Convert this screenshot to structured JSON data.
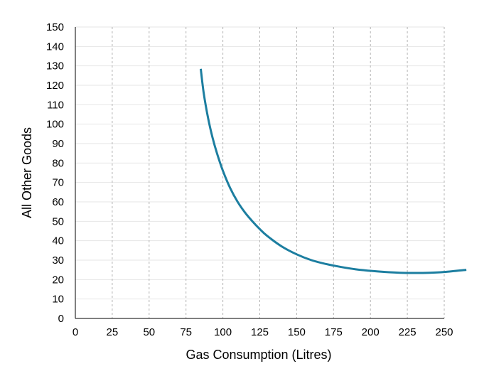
{
  "chart_data": {
    "type": "line",
    "title": "",
    "xlabel": "Gas Consumption (Litres)",
    "ylabel": "All Other Goods",
    "xlim": [
      0,
      250
    ],
    "ylim": [
      0,
      150
    ],
    "x_ticks": [
      0,
      25,
      50,
      75,
      100,
      125,
      150,
      175,
      200,
      225,
      250
    ],
    "y_ticks": [
      0,
      10,
      20,
      30,
      40,
      50,
      60,
      70,
      80,
      90,
      100,
      110,
      120,
      130,
      140,
      150
    ],
    "x_tick_labels": [
      "0",
      "25",
      "50",
      "75",
      "100",
      "125",
      "150",
      "175",
      "200",
      "225",
      "250"
    ],
    "y_tick_labels": [
      "0",
      "10",
      "20",
      "30",
      "40",
      "50",
      "60",
      "70",
      "80",
      "90",
      "100",
      "110",
      "120",
      "130",
      "140",
      "150"
    ],
    "grid": {
      "x": "dashed",
      "y": "solid-light"
    },
    "legend": "none",
    "series": [
      {
        "color": "#1c7ea0",
        "x": [
          85,
          87,
          90,
          93,
          96,
          100,
          105,
          110,
          115,
          120,
          125,
          130,
          140,
          150,
          160,
          170,
          180,
          190,
          200,
          210,
          220,
          230,
          240,
          250,
          265
        ],
        "y": [
          128.5,
          116,
          103,
          93,
          85,
          76,
          67,
          60,
          54.5,
          50,
          46,
          42.5,
          37,
          33,
          30,
          28,
          26.5,
          25.3,
          24.5,
          23.9,
          23.5,
          23.4,
          23.5,
          23.9,
          25
        ]
      }
    ]
  }
}
